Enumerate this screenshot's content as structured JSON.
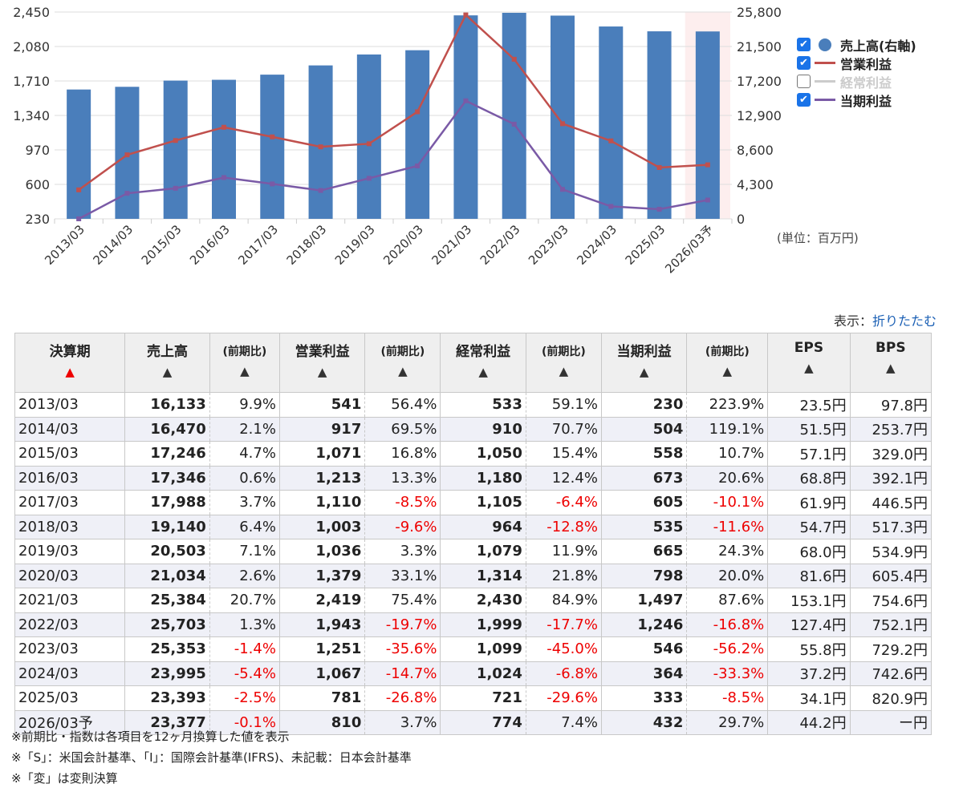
{
  "chart_data": {
    "type": "bar+line",
    "categories": [
      "2013/03",
      "2014/03",
      "2015/03",
      "2016/03",
      "2017/03",
      "2018/03",
      "2019/03",
      "2020/03",
      "2021/03",
      "2022/03",
      "2023/03",
      "2024/03",
      "2025/03",
      "2026/03予"
    ],
    "left_axis": {
      "range": [
        230,
        2450
      ],
      "ticks": [
        "2,450",
        "2,080",
        "1,710",
        "1,340",
        "970",
        "600",
        "230"
      ]
    },
    "right_axis": {
      "range": [
        0,
        25800
      ],
      "ticks": [
        "25,800",
        "21,500",
        "17,200",
        "12,900",
        "8,600",
        "4,300",
        "0"
      ]
    },
    "series": [
      {
        "name": "売上高(右軸)",
        "type": "bar",
        "axis": "right",
        "color": "#4a7ebb",
        "checked": true,
        "values": [
          16133,
          16470,
          17246,
          17346,
          17988,
          19140,
          20503,
          21034,
          25384,
          25703,
          25353,
          23995,
          23393,
          23377
        ]
      },
      {
        "name": "営業利益",
        "type": "line",
        "axis": "left",
        "color": "#c0504d",
        "checked": true,
        "values": [
          541,
          917,
          1071,
          1213,
          1110,
          1003,
          1036,
          1379,
          2419,
          1943,
          1251,
          1067,
          781,
          810
        ]
      },
      {
        "name": "経常利益",
        "type": "line",
        "axis": "left",
        "color": "#cccccc",
        "checked": false,
        "values": [
          533,
          910,
          1050,
          1180,
          1105,
          964,
          1079,
          1314,
          2430,
          1999,
          1099,
          1024,
          721,
          774
        ]
      },
      {
        "name": "当期利益",
        "type": "line",
        "axis": "left",
        "color": "#7a5aa6",
        "checked": true,
        "values": [
          230,
          504,
          558,
          673,
          605,
          535,
          665,
          798,
          1497,
          1246,
          546,
          364,
          333,
          432
        ]
      }
    ],
    "highlight_category": "2026/03予",
    "unit": "(単位：百万円)"
  },
  "toggle": {
    "label": "表示：",
    "link": "折りたたむ"
  },
  "table": {
    "headers": [
      "決算期",
      "売上高",
      "(前期比)",
      "営業利益",
      "(前期比)",
      "経常利益",
      "(前期比)",
      "当期利益",
      "(前期比)",
      "EPS",
      "BPS"
    ],
    "sort_icon": "▲",
    "rows": [
      [
        "2013/03",
        "16,133",
        "9.9%",
        "541",
        "56.4%",
        "533",
        "59.1%",
        "230",
        "223.9%",
        "23.5円",
        "97.8円"
      ],
      [
        "2014/03",
        "16,470",
        "2.1%",
        "917",
        "69.5%",
        "910",
        "70.7%",
        "504",
        "119.1%",
        "51.5円",
        "253.7円"
      ],
      [
        "2015/03",
        "17,246",
        "4.7%",
        "1,071",
        "16.8%",
        "1,050",
        "15.4%",
        "558",
        "10.7%",
        "57.1円",
        "329.0円"
      ],
      [
        "2016/03",
        "17,346",
        "0.6%",
        "1,213",
        "13.3%",
        "1,180",
        "12.4%",
        "673",
        "20.6%",
        "68.8円",
        "392.1円"
      ],
      [
        "2017/03",
        "17,988",
        "3.7%",
        "1,110",
        "-8.5%",
        "1,105",
        "-6.4%",
        "605",
        "-10.1%",
        "61.9円",
        "446.5円"
      ],
      [
        "2018/03",
        "19,140",
        "6.4%",
        "1,003",
        "-9.6%",
        "964",
        "-12.8%",
        "535",
        "-11.6%",
        "54.7円",
        "517.3円"
      ],
      [
        "2019/03",
        "20,503",
        "7.1%",
        "1,036",
        "3.3%",
        "1,079",
        "11.9%",
        "665",
        "24.3%",
        "68.0円",
        "534.9円"
      ],
      [
        "2020/03",
        "21,034",
        "2.6%",
        "1,379",
        "33.1%",
        "1,314",
        "21.8%",
        "798",
        "20.0%",
        "81.6円",
        "605.4円"
      ],
      [
        "2021/03",
        "25,384",
        "20.7%",
        "2,419",
        "75.4%",
        "2,430",
        "84.9%",
        "1,497",
        "87.6%",
        "153.1円",
        "754.6円"
      ],
      [
        "2022/03",
        "25,703",
        "1.3%",
        "1,943",
        "-19.7%",
        "1,999",
        "-17.7%",
        "1,246",
        "-16.8%",
        "127.4円",
        "752.1円"
      ],
      [
        "2023/03",
        "25,353",
        "-1.4%",
        "1,251",
        "-35.6%",
        "1,099",
        "-45.0%",
        "546",
        "-56.2%",
        "55.8円",
        "729.2円"
      ],
      [
        "2024/03",
        "23,995",
        "-5.4%",
        "1,067",
        "-14.7%",
        "1,024",
        "-6.8%",
        "364",
        "-33.3%",
        "37.2円",
        "742.6円"
      ],
      [
        "2025/03",
        "23,393",
        "-2.5%",
        "781",
        "-26.8%",
        "721",
        "-29.6%",
        "333",
        "-8.5%",
        "34.1円",
        "820.9円"
      ],
      [
        "2026/03予",
        "23,377",
        "-0.1%",
        "810",
        "3.7%",
        "774",
        "7.4%",
        "432",
        "29.7%",
        "44.2円",
        "ー円"
      ]
    ]
  },
  "notes": [
    "※前期比・指数は各項目を12ヶ月換算した値を表示",
    "※「S」：米国会計基準、「I」：国際会計基準(IFRS)、未記載：日本会計基準",
    "※「変」は変則決算"
  ]
}
